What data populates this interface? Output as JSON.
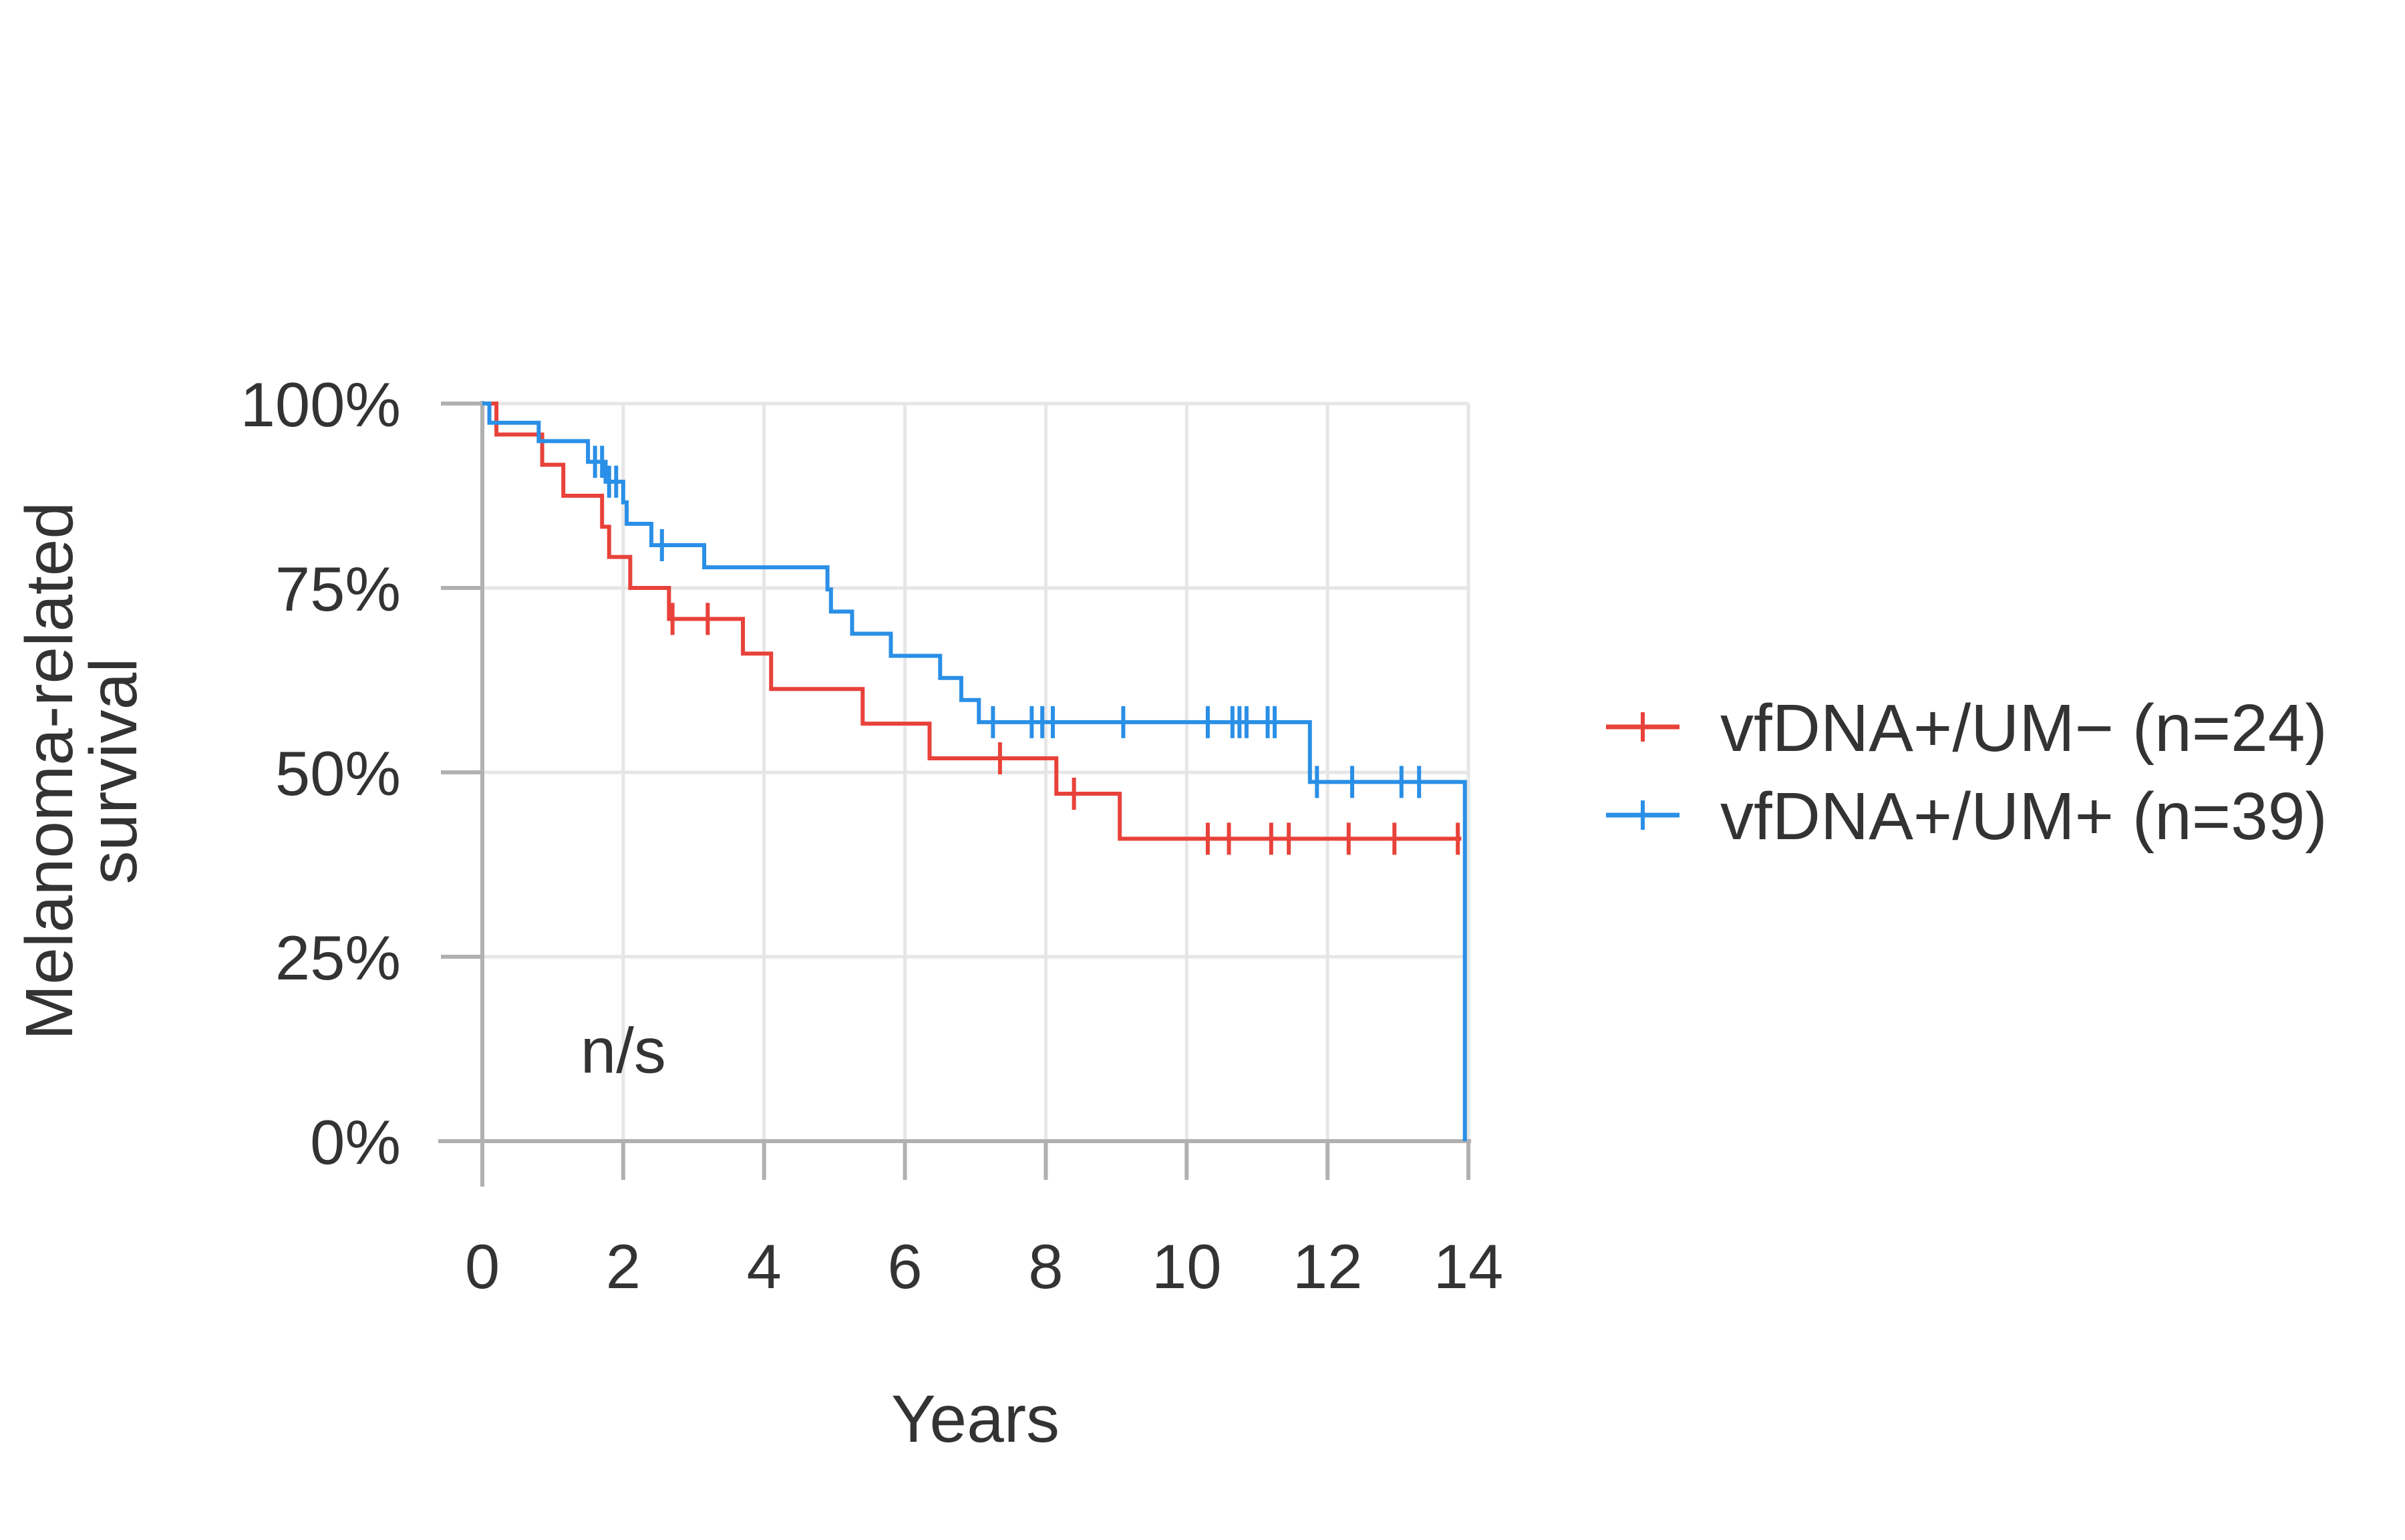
{
  "chart_data": {
    "type": "line",
    "subtype": "kaplan-meier",
    "title": "",
    "xlabel": "Years",
    "ylabel_lines": [
      "Melanoma-related",
      "survival"
    ],
    "xlim": [
      0,
      14
    ],
    "ylim": [
      0,
      1
    ],
    "x_ticks": [
      0,
      2,
      4,
      6,
      8,
      10,
      12,
      14
    ],
    "x_tick_labels": [
      "0",
      "2",
      "4",
      "6",
      "8",
      "10",
      "12",
      "14"
    ],
    "y_ticks": [
      0,
      0.25,
      0.5,
      0.75,
      1.0
    ],
    "y_tick_labels": [
      "0%",
      "25%",
      "50%",
      "75%",
      "100%"
    ],
    "grid": true,
    "legend_position": "right",
    "annotation": {
      "text": "n/s",
      "x": 2,
      "y": 0.12
    },
    "series": [
      {
        "name": "vfDNA+/UM− (n=24)",
        "color": "#E8423A",
        "steps": [
          [
            0,
            1.0
          ],
          [
            0.2,
            0.958
          ],
          [
            0.85,
            0.917
          ],
          [
            1.15,
            0.875
          ],
          [
            1.7,
            0.833
          ],
          [
            1.8,
            0.792
          ],
          [
            2.1,
            0.75
          ],
          [
            2.65,
            0.708
          ],
          [
            3.7,
            0.661
          ],
          [
            4.1,
            0.613
          ],
          [
            5.4,
            0.566
          ],
          [
            6.35,
            0.519
          ],
          [
            8.15,
            0.471
          ],
          [
            9.05,
            0.41
          ],
          [
            13.9,
            0.41
          ]
        ],
        "censored": [
          [
            2.7,
            0.708
          ],
          [
            3.2,
            0.708
          ],
          [
            7.35,
            0.519
          ],
          [
            8.4,
            0.471
          ],
          [
            10.3,
            0.41
          ],
          [
            10.6,
            0.41
          ],
          [
            11.2,
            0.41
          ],
          [
            11.45,
            0.41
          ],
          [
            12.3,
            0.41
          ],
          [
            12.95,
            0.41
          ],
          [
            13.85,
            0.41
          ]
        ]
      },
      {
        "name": "vfDNA+/UM+ (n=39)",
        "color": "#2A8FE6",
        "steps": [
          [
            0,
            1.0
          ],
          [
            0.1,
            0.974
          ],
          [
            0.8,
            0.949
          ],
          [
            1.5,
            0.921
          ],
          [
            1.75,
            0.894
          ],
          [
            2.0,
            0.866
          ],
          [
            2.05,
            0.837
          ],
          [
            2.4,
            0.808
          ],
          [
            3.15,
            0.778
          ],
          [
            4.9,
            0.748
          ],
          [
            4.95,
            0.718
          ],
          [
            5.25,
            0.688
          ],
          [
            5.8,
            0.658
          ],
          [
            6.5,
            0.628
          ],
          [
            6.8,
            0.598
          ],
          [
            7.05,
            0.568
          ],
          [
            11.75,
            0.487
          ],
          [
            13.95,
            0.487
          ],
          [
            13.95,
            0.0
          ]
        ],
        "censored": [
          [
            1.6,
            0.921
          ],
          [
            1.7,
            0.921
          ],
          [
            1.8,
            0.894
          ],
          [
            1.9,
            0.894
          ],
          [
            2.55,
            0.808
          ],
          [
            7.25,
            0.568
          ],
          [
            7.8,
            0.568
          ],
          [
            7.95,
            0.568
          ],
          [
            8.1,
            0.568
          ],
          [
            9.1,
            0.568
          ],
          [
            10.3,
            0.568
          ],
          [
            10.65,
            0.568
          ],
          [
            10.75,
            0.568
          ],
          [
            10.85,
            0.568
          ],
          [
            11.15,
            0.568
          ],
          [
            11.25,
            0.568
          ],
          [
            11.85,
            0.487
          ],
          [
            12.35,
            0.487
          ],
          [
            13.05,
            0.487
          ],
          [
            13.3,
            0.487
          ]
        ]
      }
    ]
  }
}
